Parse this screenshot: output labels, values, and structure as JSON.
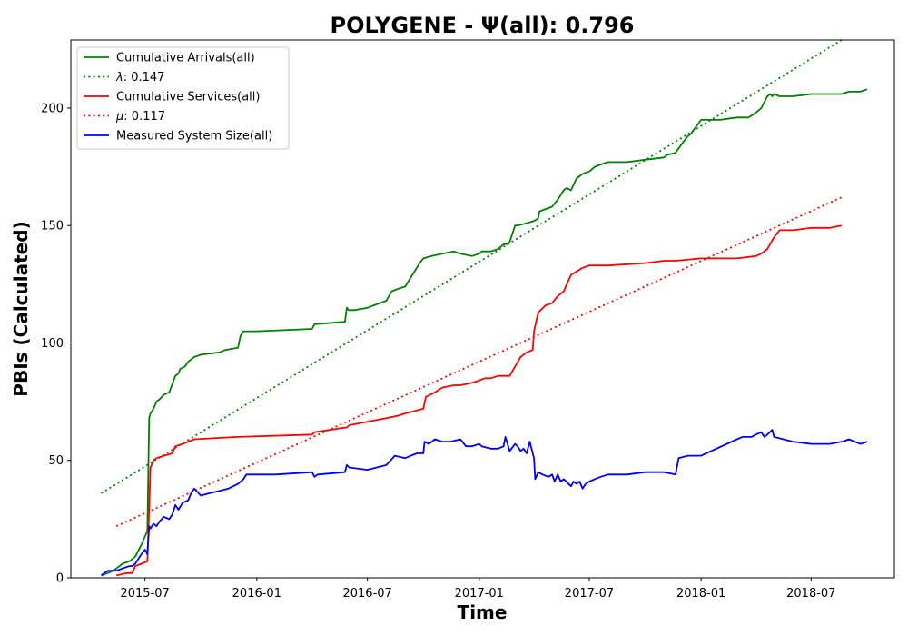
{
  "chart_data": {
    "type": "line",
    "title": "POLYGENE -  Ψ(all): 0.796",
    "xlabel": "Time",
    "ylabel": "PBIs (Calculated)",
    "x_type": "date",
    "xlim": [
      "2015-03-01",
      "2018-11-15"
    ],
    "ylim": [
      0,
      229
    ],
    "x_ticks": [
      "2015-07-01",
      "2016-01-01",
      "2016-07-01",
      "2017-01-01",
      "2017-07-01",
      "2018-01-01",
      "2018-07-01"
    ],
    "x_tick_labels": [
      "2015-07",
      "2016-01",
      "2016-07",
      "2017-01",
      "2017-07",
      "2018-01",
      "2018-07"
    ],
    "y_ticks": [
      0,
      50,
      100,
      150,
      200
    ],
    "y_tick_labels": [
      "0",
      "50",
      "100",
      "150",
      "200"
    ],
    "grid": false,
    "legend_position": "upper-left",
    "series": [
      {
        "name": "Cumulative Arrivals(all)",
        "color": "#008000",
        "style": "solid",
        "x": [
          "2015-04-20",
          "2015-05-01",
          "2015-05-10",
          "2015-05-15",
          "2015-05-25",
          "2015-06-05",
          "2015-06-15",
          "2015-06-25",
          "2015-07-05",
          "2015-07-08",
          "2015-07-10",
          "2015-07-15",
          "2015-07-20",
          "2015-07-25",
          "2015-08-01",
          "2015-08-10",
          "2015-08-20",
          "2015-08-25",
          "2015-08-28",
          "2015-09-05",
          "2015-09-10",
          "2015-09-15",
          "2015-09-20",
          "2015-10-01",
          "2015-11-01",
          "2015-11-10",
          "2015-12-01",
          "2015-12-05",
          "2015-12-10",
          "2016-01-01",
          "2016-04-01",
          "2016-04-05",
          "2016-05-25",
          "2016-05-28",
          "2016-05-31",
          "2016-06-10",
          "2016-07-01",
          "2016-08-01",
          "2016-08-10",
          "2016-08-20",
          "2016-09-01",
          "2016-09-25",
          "2016-10-01",
          "2016-10-15",
          "2016-11-01",
          "2016-11-20",
          "2016-12-01",
          "2016-12-20",
          "2017-01-01",
          "2017-01-05",
          "2017-01-20",
          "2017-02-01",
          "2017-02-10",
          "2017-02-15",
          "2017-02-20",
          "2017-03-01",
          "2017-03-05",
          "2017-03-20",
          "2017-04-01",
          "2017-04-08",
          "2017-04-10",
          "2017-04-20",
          "2017-05-01",
          "2017-05-10",
          "2017-05-20",
          "2017-05-25",
          "2017-06-01",
          "2017-06-10",
          "2017-06-20",
          "2017-07-01",
          "2017-07-10",
          "2017-07-20",
          "2017-08-01",
          "2017-08-15",
          "2017-09-01",
          "2017-10-01",
          "2017-11-01",
          "2017-11-05",
          "2017-11-20",
          "2017-12-01",
          "2017-12-10",
          "2017-12-15",
          "2018-01-01",
          "2018-02-01",
          "2018-03-01",
          "2018-03-20",
          "2018-04-01",
          "2018-04-10",
          "2018-04-20",
          "2018-04-25",
          "2018-04-28",
          "2018-05-01",
          "2018-05-10",
          "2018-06-01",
          "2018-07-01",
          "2018-08-01",
          "2018-08-20",
          "2018-09-01",
          "2018-09-20",
          "2018-10-01"
        ],
        "values": [
          1,
          2,
          3,
          4,
          6,
          7,
          9,
          14,
          20,
          68,
          70,
          72,
          75,
          76,
          78,
          79,
          86,
          87,
          89,
          90,
          92,
          93,
          94,
          95,
          96,
          97,
          98,
          103,
          105,
          105,
          106,
          108,
          109,
          115,
          114,
          114,
          115,
          118,
          122,
          123,
          124,
          134,
          136,
          137,
          138,
          139,
          138,
          137,
          138,
          139,
          139,
          140,
          142,
          142,
          143,
          150,
          150,
          151,
          152,
          153,
          156,
          157,
          158,
          161,
          165,
          166,
          165,
          170,
          172,
          173,
          175,
          176,
          177,
          177,
          177,
          178,
          179,
          180,
          181,
          185,
          188,
          189,
          195,
          195,
          196,
          196,
          198,
          200,
          205,
          206,
          205,
          206,
          205,
          205,
          206,
          206,
          206,
          207,
          207,
          208
        ]
      },
      {
        "name": "λ: 0.147",
        "label_prefix": "λ",
        "label_value": ": 0.147",
        "color": "#008000",
        "style": "dotted",
        "x": [
          "2015-04-20",
          "2018-08-20"
        ],
        "values": [
          36,
          229
        ]
      },
      {
        "name": "Cumulative Services(all)",
        "color": "#ff0000",
        "style": "solid",
        "x": [
          "2015-05-15",
          "2015-06-01",
          "2015-06-10",
          "2015-06-15",
          "2015-06-25",
          "2015-07-05",
          "2015-07-08",
          "2015-07-10",
          "2015-07-12",
          "2015-07-15",
          "2015-07-20",
          "2015-08-01",
          "2015-08-15",
          "2015-08-20",
          "2015-09-01",
          "2015-09-20",
          "2015-12-01",
          "2016-04-01",
          "2016-04-05",
          "2016-05-25",
          "2016-05-28",
          "2016-06-01",
          "2016-08-01",
          "2016-08-20",
          "2016-09-01",
          "2016-10-01",
          "2016-10-05",
          "2016-10-20",
          "2016-11-01",
          "2016-11-20",
          "2016-12-01",
          "2016-12-20",
          "2017-01-01",
          "2017-01-10",
          "2017-01-20",
          "2017-02-01",
          "2017-02-20",
          "2017-03-01",
          "2017-03-10",
          "2017-03-20",
          "2017-03-30",
          "2017-04-01",
          "2017-04-08",
          "2017-04-20",
          "2017-05-01",
          "2017-05-10",
          "2017-05-20",
          "2017-05-25",
          "2017-06-01",
          "2017-06-20",
          "2017-07-01",
          "2017-08-01",
          "2017-10-01",
          "2017-11-01",
          "2017-11-20",
          "2018-01-01",
          "2018-02-01",
          "2018-03-01",
          "2018-04-01",
          "2018-04-10",
          "2018-04-20",
          "2018-05-01",
          "2018-05-10",
          "2018-05-20",
          "2018-06-01",
          "2018-07-01",
          "2018-08-01",
          "2018-08-20"
        ],
        "values": [
          1,
          2,
          2,
          5,
          6,
          7,
          30,
          47,
          48,
          50,
          51,
          52,
          53,
          56,
          57,
          59,
          60,
          61,
          62,
          64,
          64,
          65,
          68,
          69,
          70,
          72,
          77,
          79,
          81,
          82,
          82,
          83,
          84,
          85,
          85,
          86,
          86,
          90,
          94,
          96,
          97,
          105,
          113,
          116,
          117,
          120,
          122,
          125,
          129,
          132,
          133,
          133,
          134,
          135,
          135,
          136,
          136,
          136,
          137,
          138,
          140,
          145,
          148,
          148,
          148,
          149,
          149,
          150
        ]
      },
      {
        "name": "μ: 0.117",
        "label_prefix": "μ",
        "label_value": ": 0.117",
        "color": "#ff0000",
        "style": "dotted",
        "x": [
          "2015-05-15",
          "2018-08-20"
        ],
        "values": [
          22,
          162
        ]
      },
      {
        "name": "Measured System Size(all)",
        "color": "#0000ff",
        "style": "solid",
        "x": [
          "2015-04-20",
          "2015-04-25",
          "2015-05-01",
          "2015-05-15",
          "2015-05-25",
          "2015-06-05",
          "2015-06-10",
          "2015-06-15",
          "2015-06-20",
          "2015-06-25",
          "2015-07-01",
          "2015-07-05",
          "2015-07-08",
          "2015-07-10",
          "2015-07-15",
          "2015-07-20",
          "2015-07-25",
          "2015-08-01",
          "2015-08-10",
          "2015-08-15",
          "2015-08-20",
          "2015-08-25",
          "2015-09-01",
          "2015-09-10",
          "2015-09-15",
          "2015-09-20",
          "2015-10-01",
          "2015-10-15",
          "2015-11-01",
          "2015-11-15",
          "2015-12-01",
          "2015-12-10",
          "2015-12-15",
          "2016-01-01",
          "2016-02-01",
          "2016-04-01",
          "2016-04-05",
          "2016-04-10",
          "2016-05-25",
          "2016-05-28",
          "2016-06-01",
          "2016-07-01",
          "2016-08-01",
          "2016-08-15",
          "2016-09-01",
          "2016-09-20",
          "2016-10-01",
          "2016-10-03",
          "2016-10-10",
          "2016-10-20",
          "2016-11-01",
          "2016-11-15",
          "2016-12-01",
          "2016-12-10",
          "2016-12-20",
          "2017-01-01",
          "2017-01-05",
          "2017-01-20",
          "2017-02-01",
          "2017-02-10",
          "2017-02-13",
          "2017-02-20",
          "2017-03-01",
          "2017-03-05",
          "2017-03-10",
          "2017-03-15",
          "2017-03-20",
          "2017-03-25",
          "2017-04-01",
          "2017-04-03",
          "2017-04-08",
          "2017-04-15",
          "2017-04-25",
          "2017-05-01",
          "2017-05-05",
          "2017-05-10",
          "2017-05-15",
          "2017-05-20",
          "2017-06-01",
          "2017-06-05",
          "2017-06-10",
          "2017-06-15",
          "2017-06-20",
          "2017-06-25",
          "2017-07-01",
          "2017-07-10",
          "2017-07-20",
          "2017-08-01",
          "2017-09-01",
          "2017-10-01",
          "2017-11-01",
          "2017-11-20",
          "2017-11-25",
          "2017-12-10",
          "2018-01-01",
          "2018-03-01",
          "2018-03-10",
          "2018-03-20",
          "2018-03-25",
          "2018-04-01",
          "2018-04-10",
          "2018-04-15",
          "2018-04-20",
          "2018-04-28",
          "2018-05-01",
          "2018-06-01",
          "2018-07-01",
          "2018-08-01",
          "2018-08-20",
          "2018-08-22",
          "2018-09-01",
          "2018-09-20",
          "2018-10-01"
        ],
        "values": [
          1,
          2,
          3,
          3,
          4,
          5,
          5,
          6,
          8,
          10,
          12,
          10,
          22,
          21,
          23,
          22,
          24,
          26,
          25,
          27,
          31,
          29,
          32,
          33,
          36,
          38,
          35,
          36,
          37,
          38,
          40,
          42,
          44,
          44,
          44,
          45,
          43,
          44,
          45,
          48,
          47,
          46,
          48,
          52,
          51,
          53,
          53,
          58,
          57,
          59,
          58,
          58,
          59,
          56,
          56,
          57,
          56,
          55,
          55,
          56,
          60,
          54,
          57,
          56,
          54,
          55,
          53,
          58,
          51,
          42,
          45,
          44,
          43,
          44,
          41,
          44,
          41,
          42,
          39,
          41,
          40,
          41,
          38,
          40,
          41,
          42,
          43,
          44,
          44,
          45,
          45,
          44,
          51,
          52,
          52,
          59,
          60,
          60,
          60,
          61,
          62,
          60,
          61,
          63,
          60,
          58,
          57,
          57,
          58,
          58,
          59,
          57,
          58
        ]
      }
    ]
  }
}
